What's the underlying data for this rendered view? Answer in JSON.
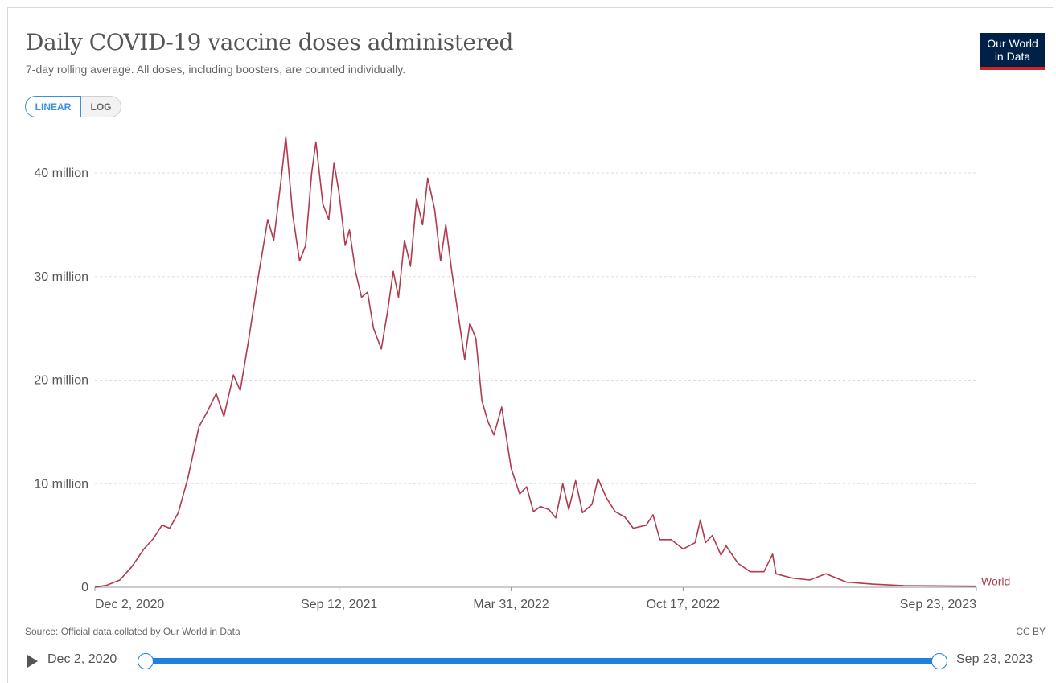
{
  "header": {
    "title": "Daily COVID-19 vaccine doses administered",
    "subtitle": "7-day rolling average. All doses, including boosters, are counted individually.",
    "logo_line1": "Our World",
    "logo_line2": "in Data"
  },
  "scale_toggle": {
    "linear_label": "LINEAR",
    "log_label": "LOG",
    "selected": "linear"
  },
  "footer": {
    "source": "Source: Official data collated by Our World in Data",
    "license": "CC BY"
  },
  "timeline": {
    "start_label": "Dec 2, 2020",
    "end_label": "Sep 23, 2023",
    "icon": "play-icon"
  },
  "colors": {
    "series": "#b13a4f",
    "grid": "#dddddd",
    "axis_text": "#555555",
    "accent": "#1e7fe0",
    "logo_bg": "#002147",
    "logo_bar": "#ce261e"
  },
  "chart_data": {
    "type": "line",
    "title": "Daily COVID-19 vaccine doses administered",
    "subtitle": "7-day rolling average. All doses, including boosters, are counted individually.",
    "x_type": "date",
    "x_range": [
      "2020-12-02",
      "2023-09-23"
    ],
    "ylim": [
      0,
      40000000
    ],
    "y_ticks": [
      {
        "value": 0,
        "label": "0"
      },
      {
        "value": 10000000,
        "label": "10 million"
      },
      {
        "value": 20000000,
        "label": "20 million"
      },
      {
        "value": 30000000,
        "label": "30 million"
      },
      {
        "value": 40000000,
        "label": "40 million"
      }
    ],
    "x_ticks": [
      {
        "date": "2020-12-02",
        "label": "Dec 2, 2020"
      },
      {
        "date": "2021-09-12",
        "label": "Sep 12, 2021"
      },
      {
        "date": "2022-03-31",
        "label": "Mar 31, 2022"
      },
      {
        "date": "2022-10-17",
        "label": "Oct 17, 2022"
      },
      {
        "date": "2023-09-23",
        "label": "Sep 23, 2023"
      }
    ],
    "grid": "horizontal dashed",
    "series": [
      {
        "name": "World",
        "points": [
          [
            "2020-12-02",
            0
          ],
          [
            "2020-12-16",
            200000
          ],
          [
            "2020-12-31",
            700000
          ],
          [
            "2021-01-14",
            2000000
          ],
          [
            "2021-01-28",
            3700000
          ],
          [
            "2021-02-08",
            4700000
          ],
          [
            "2021-02-18",
            6000000
          ],
          [
            "2021-02-27",
            5700000
          ],
          [
            "2021-03-09",
            7200000
          ],
          [
            "2021-03-20",
            10500000
          ],
          [
            "2021-04-02",
            15500000
          ],
          [
            "2021-04-12",
            17000000
          ],
          [
            "2021-04-22",
            18700000
          ],
          [
            "2021-05-01",
            16500000
          ],
          [
            "2021-05-12",
            20500000
          ],
          [
            "2021-05-20",
            19000000
          ],
          [
            "2021-05-30",
            24000000
          ],
          [
            "2021-06-10",
            30000000
          ],
          [
            "2021-06-21",
            35500000
          ],
          [
            "2021-06-28",
            33500000
          ],
          [
            "2021-07-06",
            39000000
          ],
          [
            "2021-07-12",
            43500000
          ],
          [
            "2021-07-20",
            36000000
          ],
          [
            "2021-07-28",
            31500000
          ],
          [
            "2021-08-04",
            33000000
          ],
          [
            "2021-08-11",
            40000000
          ],
          [
            "2021-08-16",
            43000000
          ],
          [
            "2021-08-24",
            37000000
          ],
          [
            "2021-08-31",
            35500000
          ],
          [
            "2021-09-06",
            41000000
          ],
          [
            "2021-09-12",
            38000000
          ],
          [
            "2021-09-19",
            33000000
          ],
          [
            "2021-09-24",
            34500000
          ],
          [
            "2021-10-01",
            30500000
          ],
          [
            "2021-10-08",
            28000000
          ],
          [
            "2021-10-15",
            28500000
          ],
          [
            "2021-10-22",
            25000000
          ],
          [
            "2021-10-31",
            23000000
          ],
          [
            "2021-11-07",
            26500000
          ],
          [
            "2021-11-14",
            30500000
          ],
          [
            "2021-11-20",
            28000000
          ],
          [
            "2021-11-27",
            33500000
          ],
          [
            "2021-12-04",
            31000000
          ],
          [
            "2021-12-11",
            37500000
          ],
          [
            "2021-12-18",
            35000000
          ],
          [
            "2021-12-24",
            39500000
          ],
          [
            "2022-01-01",
            36500000
          ],
          [
            "2022-01-08",
            31500000
          ],
          [
            "2022-01-14",
            35000000
          ],
          [
            "2022-01-21",
            30500000
          ],
          [
            "2022-01-29",
            26000000
          ],
          [
            "2022-02-05",
            22000000
          ],
          [
            "2022-02-11",
            25500000
          ],
          [
            "2022-02-18",
            24000000
          ],
          [
            "2022-02-25",
            18000000
          ],
          [
            "2022-03-04",
            16000000
          ],
          [
            "2022-03-11",
            14700000
          ],
          [
            "2022-03-20",
            17400000
          ],
          [
            "2022-03-31",
            11500000
          ],
          [
            "2022-04-10",
            9000000
          ],
          [
            "2022-04-18",
            9700000
          ],
          [
            "2022-04-26",
            7300000
          ],
          [
            "2022-05-04",
            7800000
          ],
          [
            "2022-05-14",
            7500000
          ],
          [
            "2022-05-22",
            6700000
          ],
          [
            "2022-05-30",
            10000000
          ],
          [
            "2022-06-06",
            7500000
          ],
          [
            "2022-06-14",
            10300000
          ],
          [
            "2022-06-22",
            7200000
          ],
          [
            "2022-07-03",
            8000000
          ],
          [
            "2022-07-10",
            10500000
          ],
          [
            "2022-07-20",
            8600000
          ],
          [
            "2022-07-30",
            7300000
          ],
          [
            "2022-08-10",
            6800000
          ],
          [
            "2022-08-20",
            5700000
          ],
          [
            "2022-09-04",
            6000000
          ],
          [
            "2022-09-12",
            7000000
          ],
          [
            "2022-09-20",
            4600000
          ],
          [
            "2022-10-03",
            4600000
          ],
          [
            "2022-10-17",
            3700000
          ],
          [
            "2022-10-31",
            4300000
          ],
          [
            "2022-11-06",
            6500000
          ],
          [
            "2022-11-12",
            4300000
          ],
          [
            "2022-11-20",
            5000000
          ],
          [
            "2022-11-30",
            3100000
          ],
          [
            "2022-12-06",
            4000000
          ],
          [
            "2022-12-20",
            2300000
          ],
          [
            "2023-01-03",
            1500000
          ],
          [
            "2023-01-19",
            1500000
          ],
          [
            "2023-01-29",
            3200000
          ],
          [
            "2023-02-02",
            1300000
          ],
          [
            "2023-02-20",
            900000
          ],
          [
            "2023-03-13",
            700000
          ],
          [
            "2023-04-01",
            1300000
          ],
          [
            "2023-04-25",
            500000
          ],
          [
            "2023-05-25",
            300000
          ],
          [
            "2023-07-01",
            150000
          ],
          [
            "2023-09-23",
            100000
          ]
        ]
      }
    ]
  }
}
